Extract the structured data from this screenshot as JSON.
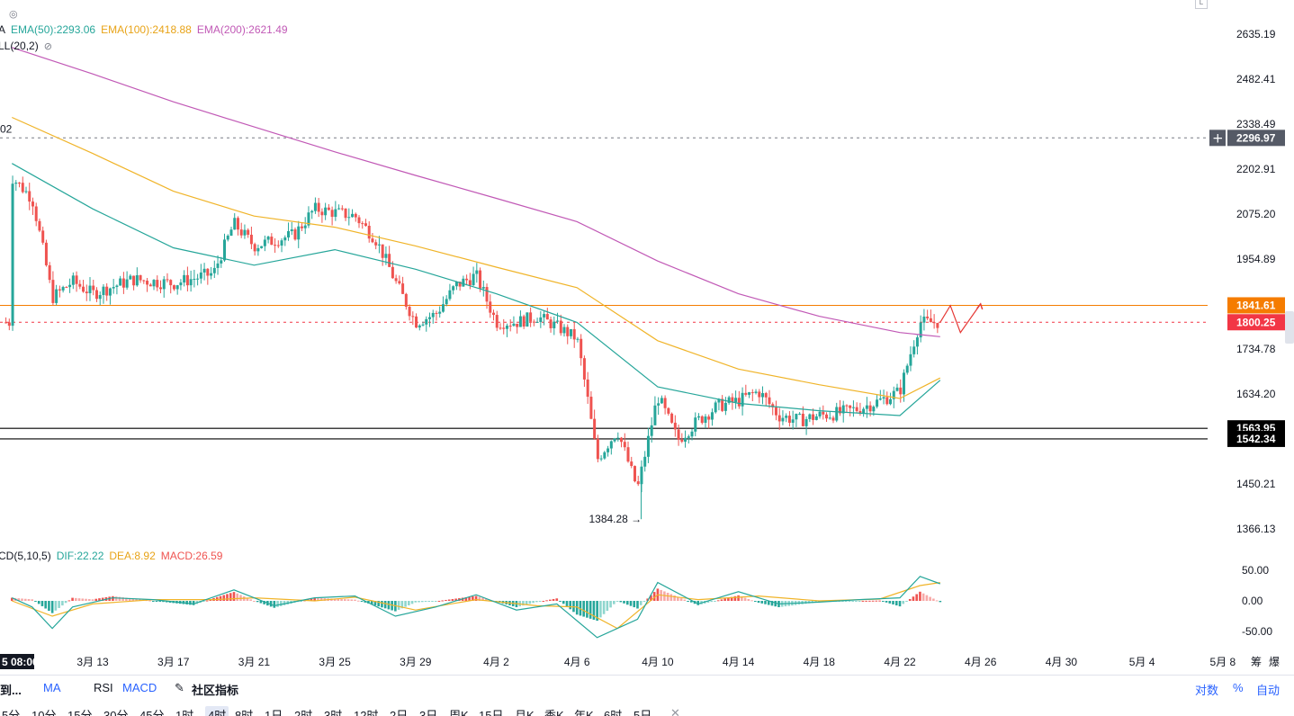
{
  "legend": {
    "main_prefix": "A",
    "ema50": "EMA(50):2293.06",
    "ema100": "EMA(100):2418.88",
    "ema200": "EMA(200):2621.49",
    "boll": "LL(20,2)",
    "macd_name": "CD(5,10,5)",
    "dif": "DIF:22.22",
    "dea": "DEA:8.92",
    "macd": "MACD:26.59"
  },
  "colors": {
    "ema50": "#26a69a",
    "ema100": "#f0b429",
    "ema200": "#c159b6",
    "up": "#26a69a",
    "down": "#ef5350",
    "resistance": "#f57c00",
    "price_tag": "#f23645",
    "crosshair_tag": "#555a66",
    "support": "#000000",
    "dif": "#26a69a",
    "dea": "#f0b429",
    "forecast": "#e53935"
  },
  "chart_data": [
    {
      "type": "candlestick",
      "title": "",
      "ylim": [
        1330,
        2700
      ],
      "y_ticks": [
        "2635.19",
        "2482.41",
        "2338.49",
        "2202.91",
        "2075.20",
        "1954.89",
        "1734.78",
        "1634.20",
        "1450.21",
        "1366.13"
      ],
      "x_start_label": "5 08:00",
      "x_ticks": [
        "3月 13",
        "3月 17",
        "3月 21",
        "3月 25",
        "3月 29",
        "4月 2",
        "4月 6",
        "4月 10",
        "4月 14",
        "4月 18",
        "4月 22",
        "4月 26",
        "4月 30",
        "5月 4",
        "5月 8"
      ],
      "x_axis_right_labels": [
        "筹",
        "爆"
      ],
      "x_range_days": [
        "3月 9",
        "5月 9"
      ],
      "price_anchors": [
        [
          "3月 9",
          2180
        ],
        [
          "3月 10",
          2120
        ],
        [
          "3月 11",
          1860
        ],
        [
          "3月 12",
          1900
        ],
        [
          "3月 13",
          1870
        ],
        [
          "3月 15",
          1905
        ],
        [
          "3月 17",
          1895
        ],
        [
          "3月 19",
          1920
        ],
        [
          "3月 20",
          2050
        ],
        [
          "3月 21",
          1990
        ],
        [
          "3月 23",
          2020
        ],
        [
          "3月 24",
          2090
        ],
        [
          "3月 25",
          2080
        ],
        [
          "3月 26",
          2070
        ],
        [
          "3月 27",
          2010
        ],
        [
          "3月 28",
          1900
        ],
        [
          "3月 29",
          1800
        ],
        [
          "3月 30",
          1820
        ],
        [
          "3月 31",
          1890
        ],
        [
          "4月 1",
          1915
        ],
        [
          "4月 2",
          1800
        ],
        [
          "4月 3",
          1800
        ],
        [
          "4月 4",
          1815
        ],
        [
          "4月 5",
          1790
        ],
        [
          "4月 6",
          1760
        ],
        [
          "4月 7",
          1500
        ],
        [
          "4月 8",
          1560
        ],
        [
          "4月 9",
          1440
        ],
        [
          "4月 10",
          1630
        ],
        [
          "4月 11",
          1540
        ],
        [
          "4月 12",
          1580
        ],
        [
          "4月 13",
          1610
        ],
        [
          "4月 14",
          1620
        ],
        [
          "4月 15",
          1640
        ],
        [
          "4月 16",
          1590
        ],
        [
          "4月 17",
          1580
        ],
        [
          "4月 18",
          1590
        ],
        [
          "4月 19",
          1595
        ],
        [
          "4月 20",
          1605
        ],
        [
          "4月 21",
          1620
        ],
        [
          "4月 22",
          1640
        ],
        [
          "4月 23",
          1800
        ],
        [
          "4月 24",
          1800
        ]
      ],
      "ema50": [
        [
          "3月 9",
          2220
        ],
        [
          "3月 13",
          2090
        ],
        [
          "3月 17",
          1985
        ],
        [
          "3月 21",
          1940
        ],
        [
          "3月 25",
          1980
        ],
        [
          "3月 29",
          1930
        ],
        [
          "4月 2",
          1870
        ],
        [
          "4月 6",
          1800
        ],
        [
          "4月 10",
          1650
        ],
        [
          "4月 14",
          1615
        ],
        [
          "4月 18",
          1600
        ],
        [
          "4月 22",
          1590
        ],
        [
          "4月 24",
          1665
        ]
      ],
      "ema100": [
        [
          "3月 9",
          2360
        ],
        [
          "3月 13",
          2250
        ],
        [
          "3月 17",
          2140
        ],
        [
          "3月 21",
          2070
        ],
        [
          "3月 25",
          2040
        ],
        [
          "3月 29",
          1990
        ],
        [
          "4月 2",
          1935
        ],
        [
          "4月 6",
          1885
        ],
        [
          "4月 10",
          1755
        ],
        [
          "4月 14",
          1690
        ],
        [
          "4月 18",
          1655
        ],
        [
          "4月 22",
          1625
        ],
        [
          "4月 24",
          1670
        ]
      ],
      "ema200": [
        [
          "3月 9",
          2590
        ],
        [
          "3月 13",
          2500
        ],
        [
          "3月 17",
          2410
        ],
        [
          "3月 21",
          2330
        ],
        [
          "3月 25",
          2255
        ],
        [
          "3月 29",
          2185
        ],
        [
          "4月 2",
          2120
        ],
        [
          "4月 6",
          2055
        ],
        [
          "4月 10",
          1950
        ],
        [
          "4月 14",
          1870
        ],
        [
          "4月 18",
          1815
        ],
        [
          "4月 22",
          1775
        ],
        [
          "4月 24",
          1765
        ]
      ],
      "low_annotation": {
        "label": "1384.28",
        "date": "4月 9",
        "value": 1384.28
      },
      "left_edge_label": "02",
      "crosshair": {
        "value": 2296.97,
        "label": "2296.97"
      },
      "resistance": {
        "value": 1841.61,
        "label": "1841.61"
      },
      "last_price": {
        "value": 1800.25,
        "label": "1800.25"
      },
      "support_lines": [
        {
          "value": 1563.95,
          "label": "1563.95"
        },
        {
          "value": 1542.34,
          "label": "1542.34"
        }
      ],
      "forecast_path": [
        [
          "4月 24",
          1800
        ],
        [
          "4月 24.5",
          1841
        ],
        [
          "4月 25",
          1775
        ],
        [
          "4月 26",
          1845
        ]
      ]
    },
    {
      "type": "bar",
      "title": "MACD",
      "ylim": [
        -75,
        75
      ],
      "y_ticks": [
        "50.00",
        "0.00",
        "-50.00"
      ],
      "dif_points": [
        [
          "3月 9",
          5
        ],
        [
          "3月 10",
          -10
        ],
        [
          "3月 11",
          -45
        ],
        [
          "3月 12",
          -10
        ],
        [
          "3月 14",
          5
        ],
        [
          "3月 16",
          2
        ],
        [
          "3月 18",
          -5
        ],
        [
          "3月 20",
          18
        ],
        [
          "3月 22",
          -8
        ],
        [
          "3月 24",
          5
        ],
        [
          "3月 26",
          8
        ],
        [
          "3月 28",
          -25
        ],
        [
          "3月 30",
          -10
        ],
        [
          "4月 1",
          10
        ],
        [
          "4月 3",
          -15
        ],
        [
          "4月 5",
          -5
        ],
        [
          "4月 7",
          -60
        ],
        [
          "4月 9",
          -30
        ],
        [
          "4月 10",
          30
        ],
        [
          "4月 12",
          -5
        ],
        [
          "4月 14",
          15
        ],
        [
          "4月 16",
          -5
        ],
        [
          "4月 18",
          -2
        ],
        [
          "4月 20",
          2
        ],
        [
          "4月 22",
          5
        ],
        [
          "4月 23",
          40
        ],
        [
          "4月 24",
          28
        ]
      ],
      "dea_points": [
        [
          "3月 9",
          0
        ],
        [
          "3月 11",
          -25
        ],
        [
          "3月 13",
          -5
        ],
        [
          "3月 16",
          2
        ],
        [
          "3月 19",
          2
        ],
        [
          "3月 21",
          5
        ],
        [
          "3月 24",
          0
        ],
        [
          "3月 26",
          6
        ],
        [
          "3月 29",
          -15
        ],
        [
          "4月 1",
          2
        ],
        [
          "4月 4",
          -8
        ],
        [
          "4月 6",
          -10
        ],
        [
          "4月 8",
          -45
        ],
        [
          "4月 10",
          10
        ],
        [
          "4月 12",
          2
        ],
        [
          "4月 15",
          8
        ],
        [
          "4月 18",
          0
        ],
        [
          "4月 21",
          3
        ],
        [
          "4月 23",
          25
        ],
        [
          "4月 24",
          30
        ]
      ]
    }
  ],
  "toolbar": {
    "row1": [
      "到...",
      "MA",
      "RSI",
      "MACD",
      "社区指标"
    ],
    "right": [
      "对数",
      "%",
      "自动"
    ],
    "timeframes": [
      "5分",
      "10分",
      "15分",
      "30分",
      "45分",
      "1时",
      "4时",
      "8时",
      "1日",
      "2时",
      "3时",
      "12时",
      "2日",
      "3日",
      "周K",
      "15日",
      "月K",
      "季K",
      "年K",
      "6时",
      "5日"
    ],
    "active_timeframe": "4时",
    "close": "✕"
  }
}
